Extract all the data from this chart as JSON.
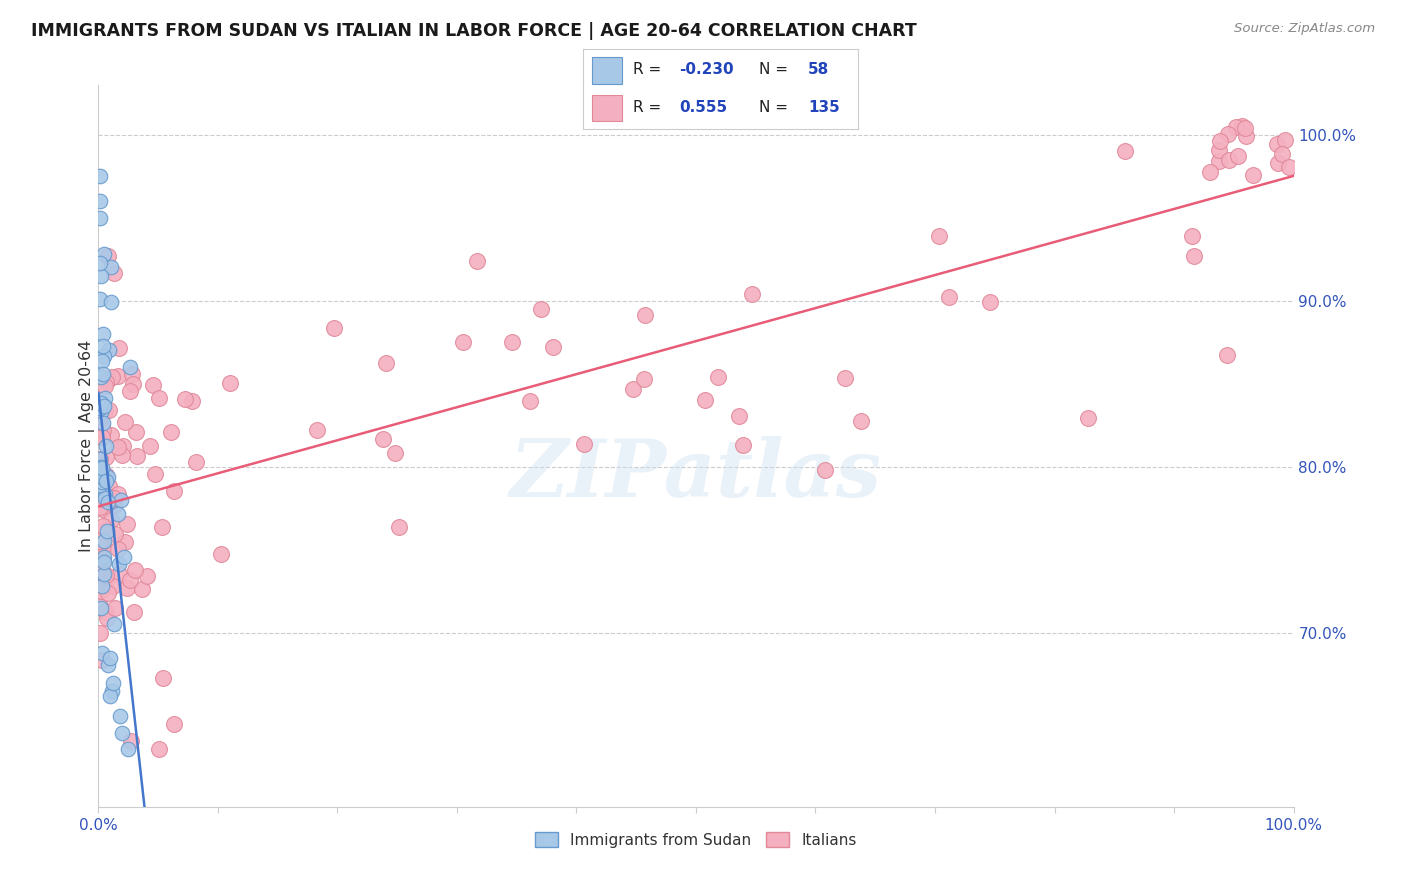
{
  "title": "IMMIGRANTS FROM SUDAN VS ITALIAN IN LABOR FORCE | AGE 20-64 CORRELATION CHART",
  "source": "Source: ZipAtlas.com",
  "ylabel": "In Labor Force | Age 20-64",
  "y_ticks": [
    "70.0%",
    "80.0%",
    "90.0%",
    "100.0%"
  ],
  "y_tick_vals": [
    0.7,
    0.8,
    0.9,
    1.0
  ],
  "x_lim": [
    0.0,
    1.0
  ],
  "y_lim": [
    0.595,
    1.03
  ],
  "legend_bottom": [
    "Immigrants from Sudan",
    "Italians"
  ],
  "sudan_color": "#a8c8e8",
  "italian_color": "#f4b0c0",
  "sudan_edge": "#6699cc",
  "italian_edge": "#e08898",
  "line_sudan_color": "#4477cc",
  "line_italian_color": "#e85c78",
  "watermark": "ZIPatlas",
  "sudan_R": -0.23,
  "sudan_N": 58,
  "italian_R": 0.555,
  "italian_N": 135
}
